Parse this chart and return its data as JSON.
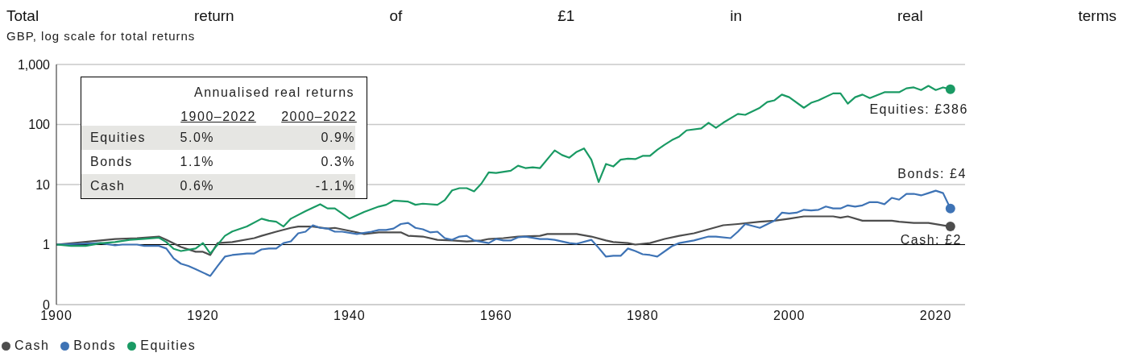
{
  "chart_data": {
    "type": "line",
    "title": "Total return of £1 in real terms",
    "subtitle": "GBP, log scale for total returns",
    "xlim": [
      1900,
      2024
    ],
    "xticks": [
      1900,
      1920,
      1940,
      1960,
      1980,
      2000,
      2020
    ],
    "ylim": [
      0.1,
      1000
    ],
    "yticks": [
      {
        "value": 0.1,
        "label": "0"
      },
      1,
      10,
      100,
      {
        "value": 1000,
        "label": "1,000"
      }
    ],
    "log": "y",
    "grid": "y",
    "legend": "bottom left",
    "marker": "none",
    "line_style": "solid",
    "ref_lines": [
      {
        "axis": "y",
        "value": 1,
        "color": "#000000"
      }
    ],
    "annotations": [
      "Annualised real returns",
      "1900–2022",
      "2000–2022",
      "Equities",
      "5.0%",
      "0.9%",
      "Bonds",
      "1.1%",
      "0.3%",
      "Cash",
      "0.6%",
      "-1.1%",
      "Equities: £386",
      "Bonds: £4",
      "Cash: £2"
    ],
    "series": [
      {
        "name": "Cash",
        "color": "#4d4d4d",
        "x": [
          1900,
          1906,
          1908,
          1911,
          1914,
          1915,
          1917,
          1919,
          1920,
          1921,
          1922,
          1924,
          1927,
          1928,
          1930,
          1932,
          1933,
          1935,
          1937,
          1938,
          1941,
          1942,
          1944,
          1947,
          1948,
          1950,
          1952,
          1954,
          1956,
          1958,
          1959,
          1961,
          1963,
          1966,
          1967,
          1971,
          1973,
          1975,
          1976,
          1978,
          1979,
          1981,
          1983,
          1985,
          1987,
          1989,
          1991,
          1993,
          1996,
          1998,
          2000,
          2002,
          2006,
          2007,
          2008,
          2010,
          2014,
          2015,
          2017,
          2019,
          2022
        ],
        "values": [
          1,
          1.17,
          1.24,
          1.28,
          1.36,
          1.2,
          0.91,
          0.76,
          0.76,
          0.67,
          1.06,
          1.1,
          1.28,
          1.4,
          1.64,
          1.9,
          2.0,
          2.0,
          1.85,
          1.9,
          1.6,
          1.5,
          1.6,
          1.6,
          1.4,
          1.36,
          1.2,
          1.17,
          1.13,
          1.17,
          1.24,
          1.28,
          1.36,
          1.4,
          1.5,
          1.5,
          1.36,
          1.17,
          1.1,
          1.06,
          1.0,
          1.06,
          1.24,
          1.4,
          1.54,
          1.8,
          2.1,
          2.2,
          2.4,
          2.5,
          2.7,
          2.95,
          2.95,
          2.8,
          2.95,
          2.5,
          2.5,
          2.4,
          2.3,
          2.3,
          2
        ]
      },
      {
        "name": "Bonds",
        "color": "#3e73b5",
        "x": [
          1900,
          1906,
          1908,
          1909,
          1911,
          1912,
          1914,
          1915,
          1916,
          1917,
          1918,
          1919,
          1921,
          1922,
          1923,
          1924,
          1926,
          1927,
          1928,
          1929,
          1930,
          1931,
          1932,
          1933,
          1934,
          1935,
          1936,
          1937,
          1938,
          1939,
          1941,
          1943,
          1944,
          1945,
          1946,
          1947,
          1948,
          1949,
          1950,
          1951,
          1952,
          1953,
          1954,
          1955,
          1956,
          1957,
          1959,
          1960,
          1961,
          1962,
          1963,
          1964,
          1966,
          1967,
          1968,
          1970,
          1971,
          1973,
          1974,
          1975,
          1976,
          1977,
          1978,
          1979,
          1980,
          1981,
          1982,
          1984,
          1985,
          1987,
          1989,
          1990,
          1992,
          1993,
          1994,
          1996,
          1998,
          1999,
          2000,
          2001,
          2002,
          2003,
          2004,
          2005,
          2006,
          2007,
          2008,
          2009,
          2010,
          2011,
          2012,
          2013,
          2014,
          2015,
          2016,
          2017,
          2018,
          2019,
          2020,
          2021,
          2022
        ],
        "values": [
          1,
          1.06,
          0.97,
          1.0,
          1.0,
          0.95,
          0.95,
          0.86,
          0.59,
          0.48,
          0.44,
          0.39,
          0.3,
          0.44,
          0.63,
          0.67,
          0.71,
          0.71,
          0.83,
          0.86,
          0.86,
          1.06,
          1.13,
          1.54,
          1.64,
          2.1,
          1.9,
          1.85,
          1.64,
          1.64,
          1.5,
          1.64,
          1.75,
          1.75,
          1.85,
          2.2,
          2.3,
          1.9,
          1.8,
          1.6,
          1.64,
          1.28,
          1.2,
          1.36,
          1.4,
          1.17,
          1.06,
          1.24,
          1.17,
          1.17,
          1.32,
          1.36,
          1.24,
          1.24,
          1.2,
          1.06,
          1.03,
          1.2,
          0.88,
          0.63,
          0.65,
          0.65,
          0.86,
          0.78,
          0.69,
          0.67,
          0.63,
          0.94,
          1.06,
          1.17,
          1.36,
          1.36,
          1.28,
          1.64,
          2.2,
          1.9,
          2.5,
          3.4,
          3.3,
          3.4,
          3.8,
          3.7,
          3.8,
          4.3,
          4.0,
          4.0,
          4.5,
          4.3,
          4.5,
          5.1,
          5.1,
          4.7,
          6.0,
          5.6,
          7.0,
          7.0,
          6.6,
          7.2,
          7.9,
          7.2,
          4
        ]
      },
      {
        "name": "Equities",
        "color": "#1a9a64",
        "x": [
          1900,
          1902,
          1904,
          1906,
          1908,
          1910,
          1912,
          1914,
          1915,
          1916,
          1917,
          1919,
          1920,
          1921,
          1923,
          1924,
          1926,
          1928,
          1929,
          1930,
          1931,
          1932,
          1934,
          1936,
          1937,
          1938,
          1940,
          1942,
          1944,
          1945,
          1946,
          1948,
          1949,
          1950,
          1952,
          1953,
          1954,
          1955,
          1956,
          1957,
          1958,
          1959,
          1960,
          1962,
          1963,
          1964,
          1965,
          1966,
          1968,
          1969,
          1970,
          1971,
          1972,
          1973,
          1974,
          1975,
          1976,
          1977,
          1978,
          1979,
          1980,
          1981,
          1982,
          1983,
          1984,
          1985,
          1986,
          1988,
          1989,
          1990,
          1991,
          1993,
          1994,
          1996,
          1997,
          1998,
          1999,
          2000,
          2002,
          2003,
          2004,
          2006,
          2007,
          2008,
          2009,
          2010,
          2011,
          2013,
          2015,
          2016,
          2017,
          2018,
          2019,
          2020,
          2021,
          2022
        ],
        "values": [
          1,
          0.95,
          0.95,
          1.05,
          1.1,
          1.2,
          1.25,
          1.3,
          1.1,
          0.85,
          0.78,
          0.86,
          1.06,
          0.71,
          1.4,
          1.65,
          2.0,
          2.7,
          2.5,
          2.4,
          2.0,
          2.7,
          3.6,
          4.7,
          4.0,
          4.0,
          2.7,
          3.5,
          4.3,
          4.6,
          5.4,
          5.2,
          4.6,
          4.8,
          4.6,
          5.5,
          8.0,
          8.7,
          8.7,
          7.7,
          10.4,
          16,
          15.6,
          17,
          20.6,
          18.8,
          19.4,
          18.8,
          37,
          31,
          28,
          35,
          40,
          26,
          11,
          22,
          20,
          26,
          27,
          26.5,
          30,
          30,
          38,
          46,
          55,
          63,
          80,
          86,
          107,
          88,
          107,
          150,
          145,
          190,
          237,
          253,
          315,
          285,
          190,
          230,
          253,
          330,
          330,
          222,
          285,
          315,
          275,
          345,
          345,
          400,
          415,
          375,
          440,
          375,
          415,
          386
        ]
      }
    ]
  }
}
